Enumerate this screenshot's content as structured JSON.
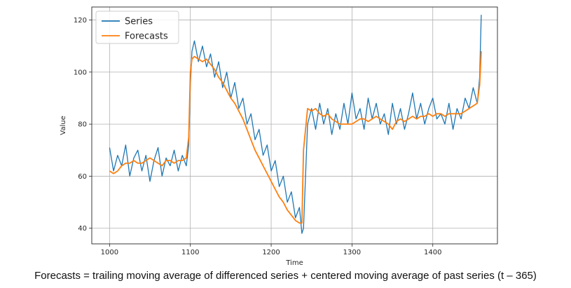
{
  "caption": "Forecasts = trailing moving average of differenced series + centered moving average of past series (t – 365)",
  "chart_data": {
    "type": "line",
    "xlabel": "Time",
    "ylabel": "Value",
    "xlim": [
      978,
      1480
    ],
    "ylim": [
      34,
      125
    ],
    "x_ticks": [
      1000,
      1100,
      1200,
      1300,
      1400
    ],
    "y_ticks": [
      40,
      60,
      80,
      100,
      120
    ],
    "grid": true,
    "legend_position": "top-left",
    "x": [
      1000,
      1005,
      1010,
      1015,
      1020,
      1025,
      1030,
      1035,
      1040,
      1045,
      1050,
      1055,
      1060,
      1065,
      1070,
      1075,
      1080,
      1085,
      1090,
      1095,
      1098,
      1100,
      1102,
      1105,
      1110,
      1115,
      1120,
      1125,
      1130,
      1135,
      1140,
      1145,
      1150,
      1155,
      1160,
      1165,
      1170,
      1175,
      1180,
      1185,
      1190,
      1195,
      1200,
      1205,
      1210,
      1215,
      1220,
      1225,
      1230,
      1235,
      1238,
      1240,
      1245,
      1250,
      1255,
      1260,
      1265,
      1270,
      1275,
      1280,
      1285,
      1290,
      1295,
      1300,
      1305,
      1310,
      1315,
      1320,
      1325,
      1330,
      1335,
      1340,
      1345,
      1350,
      1355,
      1360,
      1365,
      1370,
      1375,
      1380,
      1385,
      1390,
      1395,
      1400,
      1405,
      1410,
      1415,
      1420,
      1425,
      1430,
      1435,
      1440,
      1445,
      1450,
      1455,
      1458,
      1460
    ],
    "series": [
      {
        "name": "Series",
        "color": "#1f77b4",
        "values": [
          71,
          62,
          68,
          64,
          72,
          60,
          67,
          70,
          62,
          68,
          58,
          66,
          71,
          60,
          67,
          64,
          70,
          62,
          68,
          64,
          72,
          95,
          108,
          112,
          104,
          110,
          102,
          107,
          98,
          104,
          94,
          100,
          90,
          96,
          86,
          90,
          80,
          84,
          74,
          78,
          68,
          72,
          62,
          66,
          56,
          60,
          50,
          54,
          44,
          48,
          38,
          40,
          80,
          86,
          78,
          88,
          80,
          86,
          76,
          84,
          78,
          88,
          80,
          92,
          82,
          86,
          78,
          90,
          82,
          88,
          80,
          84,
          76,
          88,
          80,
          86,
          78,
          84,
          92,
          82,
          88,
          80,
          86,
          90,
          82,
          84,
          80,
          88,
          78,
          86,
          82,
          90,
          86,
          94,
          88,
          98,
          122
        ]
      },
      {
        "name": "Forecasts",
        "color": "#ff7f0e",
        "values": [
          62,
          61,
          62,
          64,
          65,
          65,
          66,
          65,
          65,
          66,
          67,
          66,
          65,
          64,
          66,
          66,
          65,
          66,
          66,
          67,
          75,
          100,
          105,
          106,
          105,
          104,
          105,
          103,
          101,
          98,
          96,
          93,
          90,
          88,
          85,
          82,
          78,
          74,
          70,
          67,
          64,
          61,
          58,
          55,
          52,
          50,
          47,
          45,
          43,
          42,
          42,
          70,
          86,
          85,
          86,
          84,
          83,
          84,
          82,
          81,
          80,
          80,
          80,
          80,
          81,
          82,
          82,
          81,
          82,
          83,
          82,
          81,
          80,
          78,
          81,
          82,
          81,
          82,
          83,
          82,
          83,
          83,
          84,
          83,
          84,
          84,
          83,
          84,
          84,
          84,
          84,
          85,
          86,
          87,
          88,
          95,
          108
        ]
      }
    ]
  }
}
